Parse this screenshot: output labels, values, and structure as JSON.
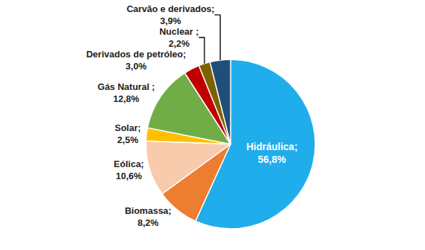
{
  "chart_data": {
    "type": "pie",
    "categories": [
      "Hidráulica;",
      "Biomassa;",
      "Eólica;",
      "Solar;",
      "Gás Natural ;",
      "Derivados de petróleo;",
      "Nuclear ;",
      "Carvão e derivados;"
    ],
    "values": [
      56.8,
      8.2,
      10.6,
      2.5,
      12.8,
      3.0,
      2.2,
      3.9
    ],
    "value_labels": [
      "56,8%",
      "8,2%",
      "10,6%",
      "2,5%",
      "12,8%",
      "3,0%",
      "2,2%",
      "3,9%"
    ],
    "colors": [
      "#1FADEB",
      "#ED7D31",
      "#F8CBAD",
      "#FFC000",
      "#70AD47",
      "#C00000",
      "#7F6000",
      "#1F4E79"
    ],
    "data_labels": true
  }
}
